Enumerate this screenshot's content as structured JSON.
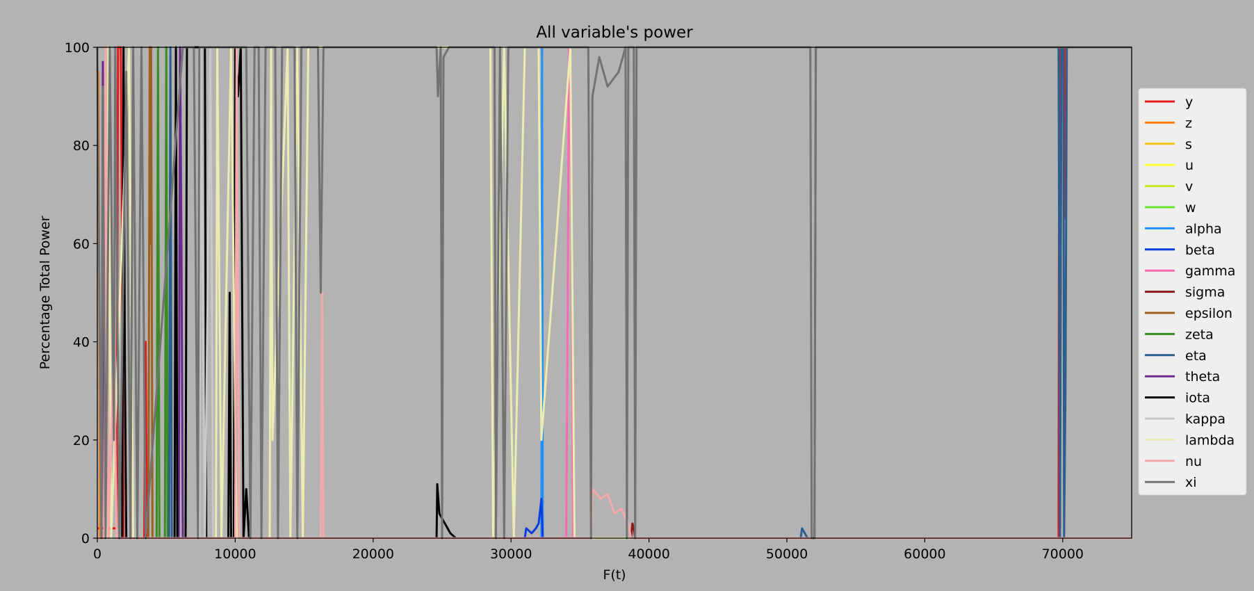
{
  "chart_data": {
    "type": "line",
    "title": "All variable's power",
    "xlabel": "F(t)",
    "ylabel": "Percentage Total Power",
    "xlim": [
      0,
      75000
    ],
    "ylim": [
      0,
      100
    ],
    "xticks": [
      0,
      10000,
      20000,
      30000,
      40000,
      50000,
      60000,
      70000
    ],
    "yticks": [
      0,
      20,
      40,
      60,
      80,
      100
    ],
    "grid": false,
    "legend_position": "right",
    "background": "#b3b3b3",
    "series": [
      {
        "name": "y",
        "color": "#e41a1c",
        "points": [
          [
            0,
            2
          ],
          [
            1400,
            2
          ],
          [
            1500,
            100
          ],
          [
            1700,
            100
          ],
          [
            1800,
            60
          ],
          [
            1900,
            0
          ],
          [
            3400,
            0
          ],
          [
            3500,
            40
          ],
          [
            3600,
            0
          ],
          [
            69700,
            0
          ],
          [
            69750,
            100
          ],
          [
            69800,
            2
          ],
          [
            69900,
            100
          ],
          [
            70050,
            100
          ],
          [
            70100,
            65
          ],
          [
            70150,
            100
          ],
          [
            75000,
            100
          ]
        ]
      },
      {
        "name": "z",
        "color": "#ff7f0e",
        "points": [
          [
            0,
            90
          ],
          [
            80,
            95
          ],
          [
            200,
            0
          ],
          [
            75000,
            0
          ]
        ]
      },
      {
        "name": "s",
        "color": "#f1c40f",
        "points": [
          [
            0,
            0
          ],
          [
            75000,
            0
          ]
        ]
      },
      {
        "name": "u",
        "color": "#ffff33",
        "points": [
          [
            0,
            0
          ],
          [
            75000,
            0
          ]
        ]
      },
      {
        "name": "v",
        "color": "#c7e81a",
        "points": [
          [
            0,
            0
          ],
          [
            75000,
            0
          ]
        ]
      },
      {
        "name": "w",
        "color": "#66e32a",
        "points": [
          [
            0,
            0
          ],
          [
            75000,
            0
          ]
        ]
      },
      {
        "name": "alpha",
        "color": "#1e90ff",
        "points": [
          [
            0,
            0
          ],
          [
            32200,
            0
          ],
          [
            32250,
            100
          ],
          [
            32300,
            0
          ],
          [
            75000,
            0
          ]
        ]
      },
      {
        "name": "beta",
        "color": "#0a3ddb",
        "points": [
          [
            0,
            0
          ],
          [
            31000,
            0
          ],
          [
            31100,
            2
          ],
          [
            31500,
            1
          ],
          [
            31800,
            2
          ],
          [
            32000,
            3
          ],
          [
            32200,
            8
          ],
          [
            32300,
            0
          ],
          [
            75000,
            0
          ]
        ]
      },
      {
        "name": "gamma",
        "color": "#ff69b4",
        "points": [
          [
            0,
            0
          ],
          [
            34000,
            0
          ],
          [
            34100,
            45
          ],
          [
            34200,
            100
          ],
          [
            34400,
            67
          ],
          [
            34500,
            0
          ],
          [
            75000,
            0
          ]
        ]
      },
      {
        "name": "sigma",
        "color": "#8b1a1a",
        "points": [
          [
            0,
            0
          ],
          [
            38700,
            0
          ],
          [
            38800,
            3
          ],
          [
            38900,
            2
          ],
          [
            39000,
            0
          ],
          [
            75000,
            0
          ]
        ]
      },
      {
        "name": "epsilon",
        "color": "#9c6021",
        "points": [
          [
            0,
            0
          ],
          [
            3700,
            0
          ],
          [
            3800,
            100
          ],
          [
            3850,
            60
          ],
          [
            3900,
            100
          ],
          [
            4000,
            0
          ],
          [
            75000,
            0
          ]
        ]
      },
      {
        "name": "zeta",
        "color": "#3a8c24",
        "points": [
          [
            0,
            0
          ],
          [
            4300,
            0
          ],
          [
            4400,
            100
          ],
          [
            4500,
            0
          ],
          [
            4900,
            0
          ],
          [
            5000,
            100
          ],
          [
            5100,
            0
          ],
          [
            75000,
            0
          ]
        ]
      },
      {
        "name": "eta",
        "color": "#2c5f8d",
        "points": [
          [
            0,
            0
          ],
          [
            5200,
            0
          ],
          [
            5300,
            100
          ],
          [
            5400,
            0
          ],
          [
            51000,
            0
          ],
          [
            51100,
            2
          ],
          [
            51300,
            1
          ],
          [
            51500,
            0
          ],
          [
            52000,
            0
          ],
          [
            52100,
            100
          ],
          [
            69700,
            100
          ],
          [
            69800,
            0
          ],
          [
            69900,
            100
          ],
          [
            70050,
            100
          ],
          [
            70100,
            0
          ],
          [
            70200,
            30
          ],
          [
            70300,
            100
          ],
          [
            75000,
            100
          ]
        ]
      },
      {
        "name": "theta",
        "color": "#6a2a8c",
        "points": [
          [
            0,
            0
          ],
          [
            300,
            0
          ],
          [
            400,
            97
          ],
          [
            500,
            0
          ],
          [
            5900,
            0
          ],
          [
            6000,
            100
          ],
          [
            6100,
            60
          ],
          [
            6200,
            0
          ],
          [
            75000,
            0
          ]
        ]
      },
      {
        "name": "iota",
        "color": "#000000",
        "points": [
          [
            0,
            0
          ],
          [
            1800,
            0
          ],
          [
            1900,
            100
          ],
          [
            2000,
            35
          ],
          [
            2100,
            0
          ],
          [
            5600,
            0
          ],
          [
            5700,
            100
          ],
          [
            5800,
            0
          ],
          [
            6400,
            0
          ],
          [
            6500,
            100
          ],
          [
            7800,
            100
          ],
          [
            7900,
            0
          ],
          [
            9500,
            0
          ],
          [
            9600,
            50
          ],
          [
            9700,
            0
          ],
          [
            9900,
            0
          ],
          [
            10000,
            100
          ],
          [
            10200,
            90
          ],
          [
            10400,
            100
          ],
          [
            10600,
            0
          ],
          [
            10800,
            10
          ],
          [
            11000,
            0
          ],
          [
            24600,
            0
          ],
          [
            24650,
            11
          ],
          [
            24800,
            5
          ],
          [
            25200,
            3
          ],
          [
            25600,
            1
          ],
          [
            26000,
            0
          ],
          [
            75000,
            0
          ]
        ]
      },
      {
        "name": "kappa",
        "color": "#c8c8c8",
        "points": [
          [
            0,
            0
          ],
          [
            7400,
            0
          ],
          [
            7500,
            100
          ],
          [
            7800,
            0
          ],
          [
            8200,
            100
          ],
          [
            8400,
            0
          ],
          [
            75000,
            0
          ]
        ]
      },
      {
        "name": "lambda",
        "color": "#ecebb2",
        "points": [
          [
            0,
            0
          ],
          [
            700,
            0
          ],
          [
            800,
            100
          ],
          [
            1000,
            0
          ],
          [
            2300,
            100
          ],
          [
            2600,
            0
          ],
          [
            8600,
            0
          ],
          [
            8700,
            100
          ],
          [
            9000,
            0
          ],
          [
            9700,
            100
          ],
          [
            10100,
            0
          ],
          [
            12500,
            0
          ],
          [
            12600,
            100
          ],
          [
            12700,
            20
          ],
          [
            13800,
            100
          ],
          [
            14000,
            0
          ],
          [
            14500,
            100
          ],
          [
            14900,
            0
          ],
          [
            15300,
            100
          ],
          [
            28500,
            100
          ],
          [
            28700,
            0
          ],
          [
            29500,
            100
          ],
          [
            30200,
            0
          ],
          [
            31000,
            100
          ],
          [
            32000,
            100
          ],
          [
            32200,
            20
          ],
          [
            34300,
            100
          ],
          [
            34600,
            0
          ],
          [
            75000,
            0
          ]
        ]
      },
      {
        "name": "nu",
        "color": "#f4aaaa",
        "points": [
          [
            0,
            0
          ],
          [
            500,
            0
          ],
          [
            600,
            100
          ],
          [
            800,
            0
          ],
          [
            1200,
            40
          ],
          [
            1400,
            0
          ],
          [
            10000,
            0
          ],
          [
            10100,
            100
          ],
          [
            10300,
            0
          ],
          [
            16200,
            0
          ],
          [
            16300,
            50
          ],
          [
            16400,
            0
          ],
          [
            35800,
            0
          ],
          [
            35900,
            10
          ],
          [
            36500,
            8
          ],
          [
            37000,
            9
          ],
          [
            37500,
            5
          ],
          [
            38000,
            6
          ],
          [
            38500,
            3
          ],
          [
            38700,
            0
          ],
          [
            75000,
            0
          ]
        ]
      },
      {
        "name": "xi",
        "color": "#737373",
        "points": [
          [
            0,
            100
          ],
          [
            300,
            0
          ],
          [
            400,
            92
          ],
          [
            600,
            0
          ],
          [
            900,
            100
          ],
          [
            1200,
            20
          ],
          [
            1300,
            100
          ],
          [
            1600,
            0
          ],
          [
            2100,
            95
          ],
          [
            2400,
            0
          ],
          [
            2600,
            100
          ],
          [
            2900,
            0
          ],
          [
            3200,
            100
          ],
          [
            3500,
            0
          ],
          [
            6200,
            100
          ],
          [
            7000,
            100
          ],
          [
            7300,
            0
          ],
          [
            7400,
            100
          ],
          [
            10800,
            100
          ],
          [
            11100,
            0
          ],
          [
            11400,
            100
          ],
          [
            11700,
            100
          ],
          [
            11900,
            0
          ],
          [
            12200,
            100
          ],
          [
            12900,
            100
          ],
          [
            13100,
            0
          ],
          [
            13400,
            100
          ],
          [
            14300,
            100
          ],
          [
            14500,
            0
          ],
          [
            14800,
            100
          ],
          [
            16000,
            100
          ],
          [
            16200,
            50
          ],
          [
            16400,
            100
          ],
          [
            24600,
            100
          ],
          [
            24700,
            90
          ],
          [
            24900,
            100
          ],
          [
            25000,
            0
          ],
          [
            25100,
            98
          ],
          [
            25500,
            100
          ],
          [
            28800,
            100
          ],
          [
            28900,
            0
          ],
          [
            29200,
            100
          ],
          [
            29500,
            0
          ],
          [
            29800,
            100
          ],
          [
            35600,
            100
          ],
          [
            35800,
            0
          ],
          [
            35900,
            90
          ],
          [
            36400,
            98
          ],
          [
            37000,
            92
          ],
          [
            37800,
            95
          ],
          [
            38300,
            100
          ],
          [
            38400,
            0
          ],
          [
            38500,
            100
          ],
          [
            38900,
            100
          ],
          [
            39000,
            0
          ],
          [
            39100,
            100
          ],
          [
            51700,
            100
          ],
          [
            51800,
            0
          ],
          [
            52000,
            0
          ],
          [
            52100,
            100
          ],
          [
            75000,
            100
          ]
        ]
      }
    ]
  }
}
